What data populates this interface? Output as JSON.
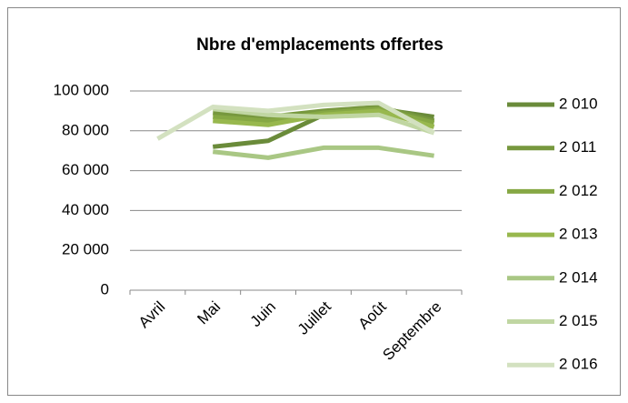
{
  "chart_data": {
    "type": "line",
    "title": "Nbre d'emplacements offertes",
    "categories": [
      "Avril",
      "Mai",
      "Juin",
      "Juillet",
      "Août",
      "Septembre"
    ],
    "series": [
      {
        "name": "2 010",
        "color": "#6a8b3a",
        "values": [
          null,
          72000,
          75000,
          88000,
          91000,
          87000
        ]
      },
      {
        "name": "2 011",
        "color": "#77983e",
        "values": [
          null,
          89000,
          87000,
          90000,
          92000,
          85000
        ]
      },
      {
        "name": "2 012",
        "color": "#86a844",
        "values": [
          null,
          87000,
          85000,
          89000,
          91000,
          84000
        ]
      },
      {
        "name": "2 013",
        "color": "#98b84e",
        "values": [
          null,
          85000,
          83000,
          88000,
          90000,
          82000
        ]
      },
      {
        "name": "2 014",
        "color": "#a9c784",
        "values": [
          null,
          69500,
          66500,
          71500,
          71500,
          67500
        ]
      },
      {
        "name": "2 015",
        "color": "#c0d6a2",
        "values": [
          null,
          91000,
          88000,
          87000,
          88000,
          79000
        ]
      },
      {
        "name": "2 016",
        "color": "#d3e1c0",
        "values": [
          76000,
          92000,
          90000,
          93000,
          94000,
          79000
        ]
      }
    ],
    "ylim": [
      0,
      100000
    ],
    "yticks": [
      0,
      {
        "value": 20000,
        "label": "20 000"
      },
      {
        "value": 40000,
        "label": "40 000"
      },
      {
        "value": 60000,
        "label": "60 000"
      },
      {
        "value": 80000,
        "label": "80 000"
      },
      {
        "value": 100000,
        "label": "100 000"
      }
    ],
    "grid": true,
    "legend": "right"
  }
}
